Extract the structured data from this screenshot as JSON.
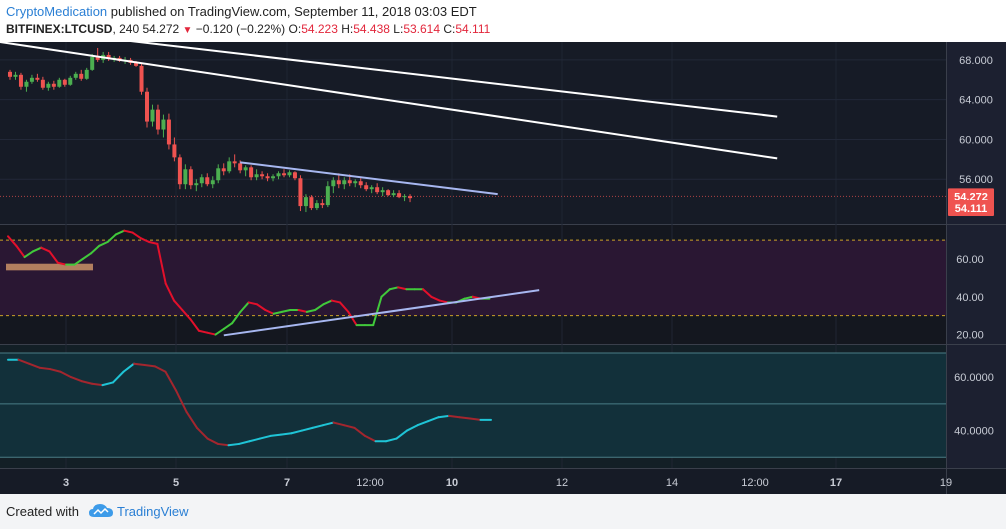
{
  "header": {
    "author": "CryptoMedication",
    "published_text": "published on TradingView.com, September 11, 2018 03:03 EDT",
    "symbol": "BITFINEX:LTCUSD",
    "interval": ", 240",
    "last": "54.272",
    "change": "−0.120 (−0.22%)",
    "o_label": "O:",
    "o_value": "54.223",
    "h_label": "H:",
    "h_value": "54.438",
    "l_label": "L:",
    "l_value": "53.614",
    "c_label": "C:",
    "c_value": "54.111"
  },
  "footer": {
    "created_with": "Created with",
    "brand": "TradingView"
  },
  "colors": {
    "up": "#26a69a",
    "green_candle": "#4caf50",
    "down": "#ef5350",
    "price_bg": "#161b26",
    "rsi_bg": "#2a1733",
    "stoch_bg": "#12303a",
    "trendline": "#ffffff",
    "support_line": "#a7b7f0"
  },
  "chart_data": [
    {
      "type": "candlestick",
      "panel": "price",
      "y_ticks": [
        "68.000",
        "64.000",
        "60.000",
        "56.000"
      ],
      "ylim": [
        51.5,
        69.8
      ],
      "last_price_label": "54.272",
      "close_price_label": "54.111",
      "x_ticks": [
        "3",
        "5",
        "7",
        "12:00",
        "10",
        "12",
        "14",
        "12:00",
        "17",
        "19"
      ],
      "candles": [
        [
          66.8,
          67.0,
          66.0,
          66.3
        ],
        [
          66.3,
          66.8,
          66.0,
          66.5
        ],
        [
          66.5,
          66.7,
          65.0,
          65.3
        ],
        [
          65.3,
          66.0,
          64.8,
          65.8
        ],
        [
          65.8,
          66.5,
          65.6,
          66.2
        ],
        [
          66.2,
          66.6,
          65.8,
          66.0
        ],
        [
          66.0,
          66.3,
          65.0,
          65.2
        ],
        [
          65.2,
          65.8,
          64.9,
          65.6
        ],
        [
          65.6,
          65.9,
          65.0,
          65.3
        ],
        [
          65.3,
          66.2,
          65.2,
          66.0
        ],
        [
          66.0,
          66.1,
          65.3,
          65.5
        ],
        [
          65.5,
          66.4,
          65.4,
          66.2
        ],
        [
          66.2,
          66.8,
          66.0,
          66.6
        ],
        [
          66.6,
          67.0,
          65.9,
          66.1
        ],
        [
          66.1,
          67.2,
          66.0,
          67.0
        ],
        [
          67.0,
          68.6,
          66.9,
          68.3
        ],
        [
          68.3,
          69.2,
          67.8,
          68.0
        ],
        [
          68.0,
          68.8,
          67.7,
          68.5
        ],
        [
          68.5,
          68.8,
          67.9,
          68.1
        ],
        [
          68.1,
          68.4,
          67.8,
          68.2
        ],
        [
          68.2,
          68.4,
          67.8,
          67.9
        ],
        [
          67.9,
          68.3,
          67.6,
          68.0
        ],
        [
          68.0,
          68.2,
          67.5,
          67.7
        ],
        [
          67.7,
          67.9,
          67.3,
          67.4
        ],
        [
          67.4,
          67.6,
          64.5,
          64.8
        ],
        [
          64.8,
          65.2,
          61.2,
          61.8
        ],
        [
          61.8,
          63.5,
          61.3,
          63.0
        ],
        [
          63.0,
          63.5,
          60.5,
          61.0
        ],
        [
          61.0,
          62.5,
          60.2,
          62.0
        ],
        [
          62.0,
          62.6,
          59.0,
          59.5
        ],
        [
          59.5,
          60.2,
          57.8,
          58.2
        ],
        [
          58.2,
          58.5,
          55.0,
          55.5
        ],
        [
          55.5,
          57.5,
          55.0,
          57.0
        ],
        [
          57.0,
          57.3,
          55.0,
          55.4
        ],
        [
          55.4,
          56.0,
          54.8,
          55.6
        ],
        [
          55.6,
          56.5,
          55.2,
          56.2
        ],
        [
          56.2,
          56.6,
          55.3,
          55.5
        ],
        [
          55.5,
          56.3,
          55.1,
          55.9
        ],
        [
          55.9,
          57.5,
          55.6,
          57.1
        ],
        [
          57.1,
          57.6,
          56.4,
          56.8
        ],
        [
          56.8,
          58.2,
          56.6,
          57.8
        ],
        [
          57.8,
          58.5,
          57.2,
          57.6
        ],
        [
          57.6,
          57.9,
          56.6,
          56.9
        ],
        [
          56.9,
          57.4,
          56.3,
          57.2
        ],
        [
          57.2,
          57.4,
          55.9,
          56.2
        ],
        [
          56.2,
          57.0,
          55.9,
          56.5
        ],
        [
          56.5,
          56.8,
          56.0,
          56.3
        ],
        [
          56.3,
          56.6,
          55.8,
          56.1
        ],
        [
          56.1,
          56.5,
          55.8,
          56.3
        ],
        [
          56.3,
          56.8,
          56.0,
          56.6
        ],
        [
          56.6,
          57.0,
          56.2,
          56.4
        ],
        [
          56.4,
          56.9,
          56.2,
          56.7
        ],
        [
          56.7,
          56.8,
          55.9,
          56.1
        ],
        [
          56.1,
          56.4,
          52.8,
          53.3
        ],
        [
          53.3,
          54.5,
          52.7,
          54.2
        ],
        [
          54.2,
          54.4,
          52.9,
          53.1
        ],
        [
          53.1,
          53.9,
          52.9,
          53.6
        ],
        [
          53.6,
          54.0,
          53.1,
          53.4
        ],
        [
          53.4,
          55.8,
          53.2,
          55.3
        ],
        [
          55.3,
          56.2,
          54.6,
          55.9
        ],
        [
          55.9,
          56.6,
          55.1,
          55.5
        ],
        [
          55.5,
          56.2,
          55.0,
          55.9
        ],
        [
          55.9,
          56.5,
          55.3,
          55.6
        ],
        [
          55.6,
          56.0,
          55.2,
          55.8
        ],
        [
          55.8,
          56.1,
          55.1,
          55.4
        ],
        [
          55.4,
          55.7,
          54.8,
          55.0
        ],
        [
          55.0,
          55.4,
          54.6,
          55.2
        ],
        [
          55.2,
          55.6,
          54.5,
          54.7
        ],
        [
          54.7,
          55.2,
          54.3,
          54.9
        ],
        [
          54.9,
          55.0,
          54.3,
          54.4
        ],
        [
          54.4,
          54.9,
          54.2,
          54.6
        ],
        [
          54.6,
          54.9,
          54.1,
          54.2
        ],
        [
          54.2,
          54.5,
          53.8,
          54.3
        ],
        [
          54.3,
          54.5,
          53.7,
          54.1
        ]
      ],
      "trendlines": [
        {
          "from": [
            -3,
            69.9
          ],
          "to": [
            140,
            58.1
          ]
        },
        {
          "from": [
            22,
            69.9
          ],
          "to": [
            140,
            62.3
          ]
        },
        {
          "from": [
            42,
            57.7
          ],
          "to": [
            89,
            54.5
          ]
        }
      ]
    },
    {
      "type": "line",
      "panel": "rsi",
      "y_ticks": [
        "60.00",
        "40.00",
        "20.00"
      ],
      "ylim": [
        15,
        78
      ],
      "levels": [
        70,
        30
      ],
      "series": [
        {
          "values": [
            72,
            67,
            61,
            64,
            66,
            64,
            58,
            57,
            57,
            60,
            63,
            67,
            69,
            73,
            75,
            74,
            71,
            69,
            68,
            47,
            38,
            33,
            28,
            22,
            21,
            20,
            23,
            26,
            32,
            37,
            36,
            33,
            31,
            32,
            33,
            33,
            32,
            33,
            36,
            38,
            37,
            32,
            25,
            25,
            25,
            40,
            44,
            45,
            44,
            44,
            44,
            40,
            38,
            37,
            37,
            39,
            40,
            39,
            39
          ]
        }
      ],
      "support_line": {
        "from": [
          26,
          19.6
        ],
        "to": [
          64,
          43.5
        ]
      },
      "box": {
        "from": [
          0,
          54
        ],
        "to": [
          10,
          57.5
        ]
      }
    },
    {
      "type": "line",
      "panel": "stoch",
      "y_ticks": [
        "60.0000",
        "40.0000"
      ],
      "ylim": [
        26,
        72
      ],
      "levels": [
        69,
        50,
        30
      ],
      "series": [
        {
          "values": [
            66.5,
            66.5,
            65,
            63.5,
            63,
            62,
            60,
            58.5,
            57.5,
            57,
            58,
            62,
            65,
            64.5,
            64,
            62,
            55,
            47,
            41,
            37,
            35,
            34.5,
            35,
            36,
            37,
            38,
            38.5,
            39,
            40,
            41,
            42,
            43,
            42,
            41,
            38,
            36,
            36,
            37,
            40,
            42,
            43.5,
            45,
            45.5,
            45,
            44.5,
            44,
            44
          ]
        }
      ]
    }
  ]
}
